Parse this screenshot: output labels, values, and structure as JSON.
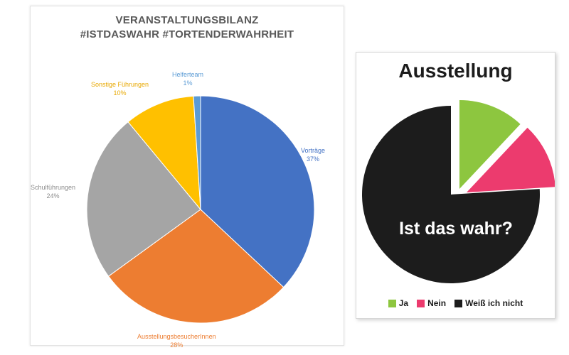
{
  "chart_data": [
    {
      "type": "pie",
      "title": "VERANSTALTUNGSBILANZ",
      "subtitle": "#ISTDASWAHR #TORTENDERWAHRHEIT",
      "slices": [
        {
          "name": "Vorträge",
          "value": 37,
          "label": "37%",
          "color": "#4472C4"
        },
        {
          "name": "AusstellungsbesucherInnen",
          "value": 28,
          "label": "28%",
          "color": "#ED7D31"
        },
        {
          "name": "Schulführungen",
          "value": 24,
          "label": "24%",
          "color": "#A5A5A5"
        },
        {
          "name": "Sonstige Führungen",
          "value": 10,
          "label": "10%",
          "color": "#FFC000"
        },
        {
          "name": "Helferteam",
          "value": 1,
          "label": "1%",
          "color": "#5B9BD5"
        }
      ]
    },
    {
      "type": "pie",
      "title": "Ausstellung",
      "annotation": "Ist das wahr?",
      "slices": [
        {
          "name": "Ja",
          "value": 12,
          "color": "#8DC63F"
        },
        {
          "name": "Nein",
          "value": 12,
          "color": "#EC3B6E"
        },
        {
          "name": "Weiß ich nicht",
          "value": 76,
          "color": "#1C1C1C"
        }
      ],
      "legend": "bottom"
    }
  ]
}
